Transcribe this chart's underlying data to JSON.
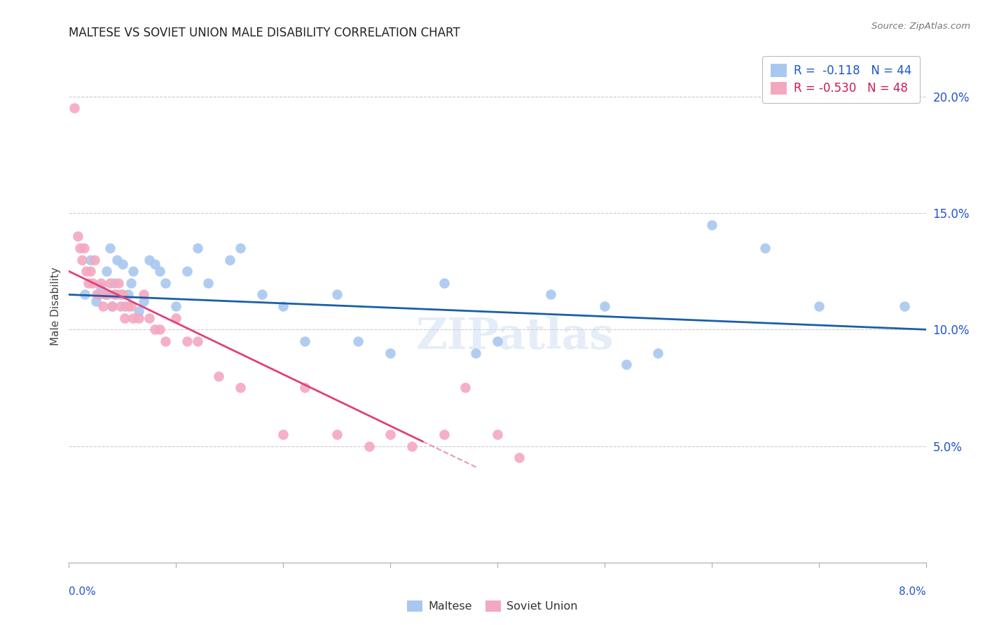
{
  "title": "MALTESE VS SOVIET UNION MALE DISABILITY CORRELATION CHART",
  "source": "Source: ZipAtlas.com",
  "ylabel": "Male Disability",
  "xlim": [
    0.0,
    8.0
  ],
  "ylim": [
    0.0,
    22.0
  ],
  "ytick_vals": [
    5.0,
    10.0,
    15.0,
    20.0
  ],
  "ytick_labels": [
    "5.0%",
    "10.0%",
    "15.0%",
    "20.0%"
  ],
  "legend_labels": [
    "R =  -0.118   N = 44",
    "R = -0.530   N = 48"
  ],
  "watermark": "ZIPatlas",
  "maltese_x": [
    0.15,
    0.2,
    0.25,
    0.3,
    0.35,
    0.38,
    0.4,
    0.42,
    0.45,
    0.48,
    0.5,
    0.52,
    0.55,
    0.58,
    0.6,
    0.65,
    0.7,
    0.75,
    0.8,
    0.85,
    0.9,
    1.0,
    1.1,
    1.2,
    1.3,
    1.5,
    1.6,
    1.8,
    2.0,
    2.2,
    2.5,
    2.7,
    3.0,
    3.5,
    3.8,
    4.0,
    4.5,
    5.0,
    5.2,
    5.5,
    6.0,
    6.5,
    7.0,
    7.8
  ],
  "maltese_y": [
    11.5,
    13.0,
    11.2,
    11.8,
    12.5,
    13.5,
    11.0,
    12.0,
    13.0,
    11.5,
    12.8,
    11.0,
    11.5,
    12.0,
    12.5,
    10.8,
    11.2,
    13.0,
    12.8,
    12.5,
    12.0,
    11.0,
    12.5,
    13.5,
    12.0,
    13.0,
    13.5,
    11.5,
    11.0,
    9.5,
    11.5,
    9.5,
    9.0,
    12.0,
    9.0,
    9.5,
    11.5,
    11.0,
    8.5,
    9.0,
    14.5,
    13.5,
    11.0,
    11.0
  ],
  "soviet_x": [
    0.05,
    0.08,
    0.1,
    0.12,
    0.14,
    0.16,
    0.18,
    0.2,
    0.22,
    0.24,
    0.26,
    0.28,
    0.3,
    0.32,
    0.34,
    0.36,
    0.38,
    0.4,
    0.42,
    0.44,
    0.46,
    0.48,
    0.5,
    0.52,
    0.55,
    0.58,
    0.6,
    0.65,
    0.7,
    0.75,
    0.8,
    0.85,
    0.9,
    1.0,
    1.1,
    1.2,
    1.4,
    1.6,
    2.0,
    2.2,
    2.5,
    2.8,
    3.0,
    3.2,
    3.5,
    3.7,
    4.0,
    4.2
  ],
  "soviet_y": [
    19.5,
    14.0,
    13.5,
    13.0,
    13.5,
    12.5,
    12.0,
    12.5,
    12.0,
    13.0,
    11.5,
    11.5,
    12.0,
    11.0,
    11.5,
    11.5,
    12.0,
    11.0,
    11.5,
    11.5,
    12.0,
    11.0,
    11.5,
    10.5,
    11.0,
    11.0,
    10.5,
    10.5,
    11.5,
    10.5,
    10.0,
    10.0,
    9.5,
    10.5,
    9.5,
    9.5,
    8.0,
    7.5,
    5.5,
    7.5,
    5.5,
    5.0,
    5.5,
    5.0,
    5.5,
    7.5,
    5.5,
    4.5
  ],
  "maltese_color": "#a8c8f0",
  "soviet_color": "#f4a8c0",
  "maltese_line_color": "#1a5fa8",
  "soviet_line_color": "#e0407a",
  "grid_color": "#cccccc",
  "background_color": "#ffffff",
  "soviet_line_x_end_solid": 3.3,
  "soviet_line_x_end_dashed": 3.8
}
